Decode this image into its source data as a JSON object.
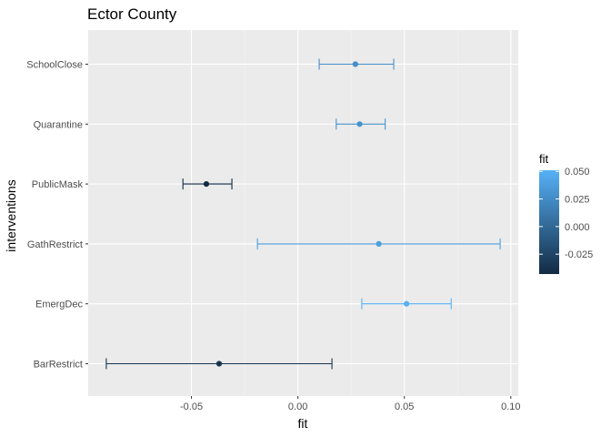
{
  "chart_data": {
    "type": "errorbar",
    "title": "Ector County",
    "xlabel": "fit",
    "ylabel": "interventions",
    "xlim": [
      -0.0985,
      0.1035
    ],
    "x_ticks": [
      -0.05,
      0.0,
      0.05,
      0.1
    ],
    "x_tick_labels": [
      "-0.05",
      "0.00",
      "0.05",
      "0.10"
    ],
    "categories": [
      "SchoolClose",
      "Quarantine",
      "PublicMask",
      "GathRestrict",
      "EmergDec",
      "BarRestrict"
    ],
    "fit": [
      0.027,
      0.029,
      -0.043,
      0.038,
      0.051,
      -0.037
    ],
    "lower": [
      0.01,
      0.018,
      -0.054,
      -0.019,
      0.03,
      -0.09
    ],
    "upper": [
      0.045,
      0.041,
      -0.031,
      0.095,
      0.072,
      0.016
    ],
    "legend": {
      "title": "fit",
      "range": [
        -0.043,
        0.051
      ],
      "ticks": [
        0.05,
        0.025,
        0.0,
        -0.025
      ],
      "tick_labels": [
        "0.050",
        "0.025",
        "0.000",
        "-0.025"
      ]
    },
    "colors": {
      "low": "#132b43",
      "high": "#56b1f7",
      "panel": "#ebebeb",
      "grid_major": "#ffffff",
      "grid_minor": "#f4f4f4"
    },
    "grid": true
  }
}
